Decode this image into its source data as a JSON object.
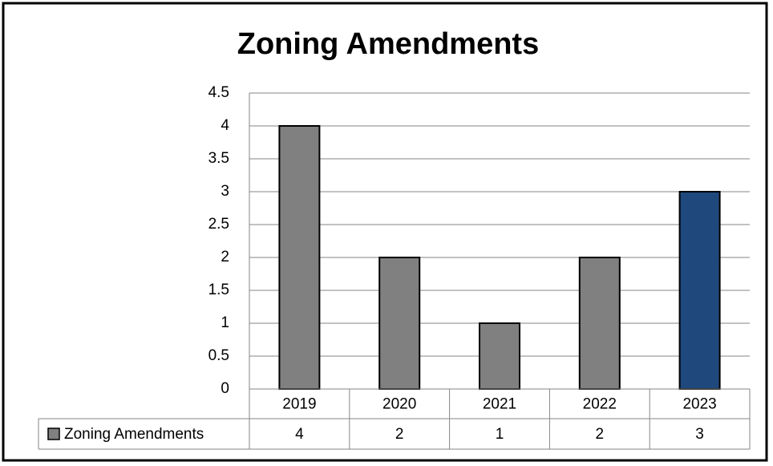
{
  "chart_data": {
    "type": "bar",
    "title": "Zoning Amendments",
    "categories": [
      "2019",
      "2020",
      "2021",
      "2022",
      "2023"
    ],
    "series": [
      {
        "name": "Zoning Amendments",
        "color": "#808080",
        "colors": [
          "#808080",
          "#808080",
          "#808080",
          "#808080",
          "#1f497d"
        ],
        "values": [
          4,
          2,
          1,
          2,
          3
        ]
      }
    ],
    "ylim": [
      0,
      4.5
    ],
    "yticks": [
      0,
      0.5,
      1,
      1.5,
      2,
      2.5,
      3,
      3.5,
      4,
      4.5
    ],
    "grid": true,
    "data_table": true
  }
}
